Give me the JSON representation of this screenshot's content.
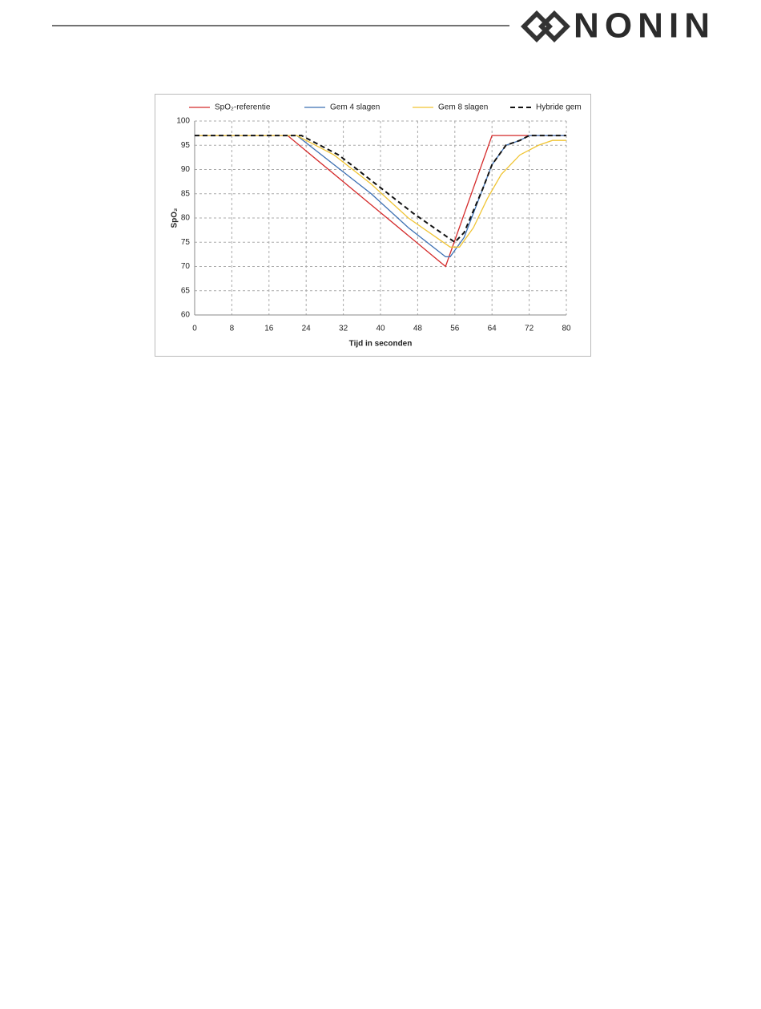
{
  "header": {
    "logo": "NONIN"
  },
  "chart_data": {
    "type": "line",
    "xlabel": "Tijd in seconden",
    "ylabel": "SpO₂",
    "xlim": [
      0,
      80
    ],
    "ylim": [
      60,
      100
    ],
    "xticks": [
      0,
      8,
      16,
      24,
      32,
      40,
      48,
      56,
      64,
      72,
      80
    ],
    "yticks": [
      60,
      65,
      70,
      75,
      80,
      85,
      90,
      95,
      100
    ],
    "grid": true,
    "legend": "top",
    "series": [
      {
        "name": "SpO₂-referentie",
        "color": "#d42a2a",
        "dash": false,
        "x": [
          0,
          20,
          54,
          64,
          80
        ],
        "values": [
          97,
          97,
          70,
          97,
          97
        ]
      },
      {
        "name": "Gem 4 slagen",
        "color": "#3b6fb2",
        "dash": false,
        "x": [
          0,
          22,
          30,
          38,
          46,
          54,
          55,
          58,
          62,
          64,
          67,
          70,
          72,
          80
        ],
        "values": [
          97,
          97,
          91,
          85,
          78,
          72,
          72,
          76,
          86,
          91,
          95,
          96,
          97,
          97
        ]
      },
      {
        "name": "Gem 8 slagen",
        "color": "#f0c433",
        "dash": false,
        "x": [
          0,
          22,
          30,
          38,
          46,
          55,
          57,
          60,
          63,
          66,
          70,
          74,
          77,
          80
        ],
        "values": [
          97,
          97,
          93,
          87,
          80,
          74,
          74,
          78,
          84,
          89,
          93,
          95,
          96,
          96
        ]
      },
      {
        "name": "Hybride gem",
        "color": "#111111",
        "dash": true,
        "x": [
          0,
          23,
          31,
          39,
          47,
          56,
          58,
          62,
          64,
          67,
          70,
          72,
          80
        ],
        "values": [
          97,
          97,
          93,
          87,
          81,
          75,
          77,
          86,
          91,
          95,
          96,
          97,
          97
        ]
      }
    ]
  }
}
